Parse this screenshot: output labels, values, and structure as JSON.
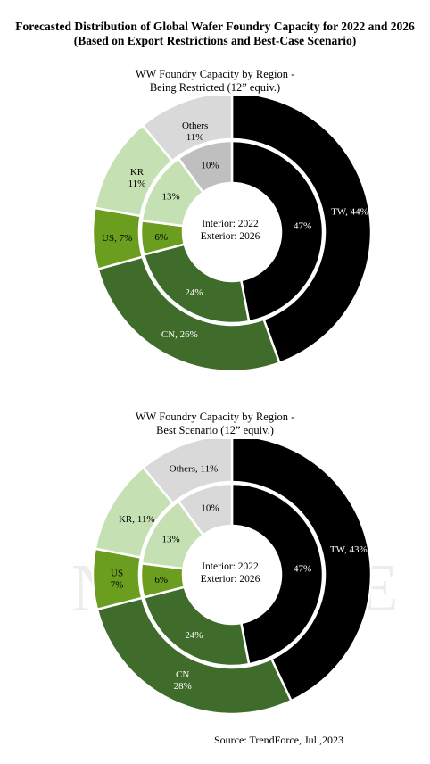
{
  "header": {
    "title_line1": "Forecasted Distribution of Global Wafer Foundry Capacity for 2022 and 2026",
    "title_line2": "(Based on Export Restrictions and Best-Case Scenario)"
  },
  "source": "Source: TrendForce, Jul.,2023",
  "center_labels": [
    "Interior: 2022",
    "Exterior: 2026"
  ],
  "chart_data": [
    {
      "type": "pie",
      "subtype": "donut-nested",
      "title_line1": "WW Foundry Capacity by Region -",
      "title_line2": "Being Restricted (12” equiv.)",
      "categories": [
        "TW",
        "CN",
        "US",
        "KR",
        "Others"
      ],
      "colors": [
        "#000000",
        "#3f6b2b",
        "#6b9e1f",
        "#c5e0b3",
        "#d9d9d9"
      ],
      "inner_colors": [
        "#000000",
        "#3f6b2b",
        "#6b9e1f",
        "#c5e0b3",
        "#bfbfbf"
      ],
      "series": [
        {
          "ring": "interior",
          "values": [
            47,
            24,
            6,
            13,
            10
          ]
        },
        {
          "ring": "exterior",
          "values": [
            44,
            26,
            7,
            11,
            11
          ]
        }
      ],
      "inner_labels": [
        "47%",
        "24%",
        "6%",
        "13%",
        "10%"
      ],
      "outer_labels": [
        "TW, 44%",
        "CN, 26%",
        "US, 7%",
        "KR\n11%",
        "Others\n11%"
      ]
    },
    {
      "type": "pie",
      "subtype": "donut-nested",
      "title_line1": "WW Foundry Capacity by Region -",
      "title_line2": "Best Scenario (12” equiv.)",
      "categories": [
        "TW",
        "CN",
        "US",
        "KR",
        "Others"
      ],
      "colors": [
        "#000000",
        "#3f6b2b",
        "#6b9e1f",
        "#c5e0b3",
        "#d9d9d9"
      ],
      "inner_colors": [
        "#000000",
        "#3f6b2b",
        "#6b9e1f",
        "#c5e0b3",
        "#d9d9d9"
      ],
      "series": [
        {
          "ring": "interior",
          "values": [
            47,
            24,
            6,
            13,
            10
          ]
        },
        {
          "ring": "exterior",
          "values": [
            43,
            28,
            7,
            11,
            11
          ]
        }
      ],
      "inner_labels": [
        "47%",
        "24%",
        "6%",
        "13%",
        "10%"
      ],
      "outer_labels": [
        "TW, 43%",
        "CN\n28%",
        "US\n7%",
        "KR, 11%",
        "Others, 11%"
      ]
    }
  ]
}
